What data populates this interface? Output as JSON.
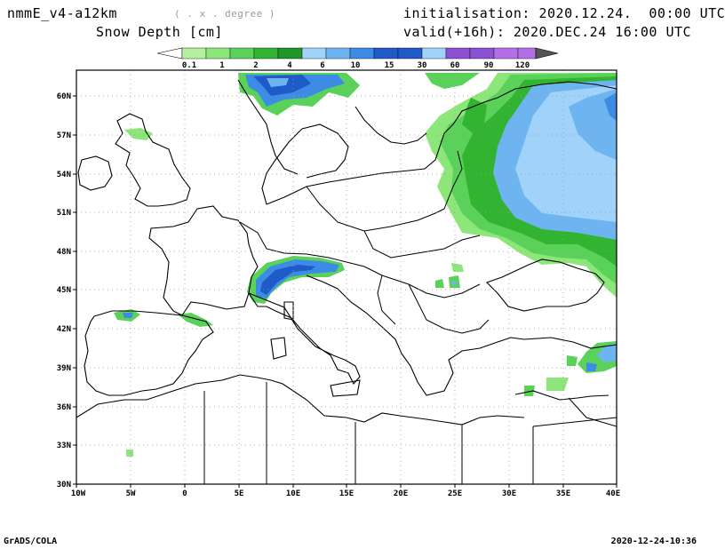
{
  "header": {
    "model": "nmmE_v4-a12km",
    "units_hint": "( . x . degree )",
    "variable": "Snow Depth [cm]",
    "init": "initialisation: 2020.12.24.  00:00 UTC",
    "valid": "valid(+16h): 2020.DEC.24 16:00 UTC"
  },
  "colorbar": {
    "labels": [
      "0.1",
      "1",
      "2",
      "4",
      "6",
      "10",
      "15",
      "30",
      "60",
      "90",
      "120"
    ],
    "colors": [
      "#b4f0a0",
      "#8ce67a",
      "#5ad25a",
      "#32b432",
      "#1e9628",
      "#a0d2fa",
      "#6eb4f0",
      "#3c8ce6",
      "#1e5ac8",
      "#8c50d2",
      "#b46ee6",
      "#555555"
    ]
  },
  "axes": {
    "lat_labels": [
      "60N",
      "57N",
      "54N",
      "51N",
      "48N",
      "45N",
      "42N",
      "39N",
      "36N",
      "33N",
      "30N"
    ],
    "lon_labels": [
      "10W",
      "5W",
      "0",
      "5E",
      "10E",
      "15E",
      "20E",
      "25E",
      "30E",
      "35E",
      "40E"
    ]
  },
  "footer": {
    "left": "GrADS/COLA",
    "right": "2020-12-24-10:36"
  }
}
